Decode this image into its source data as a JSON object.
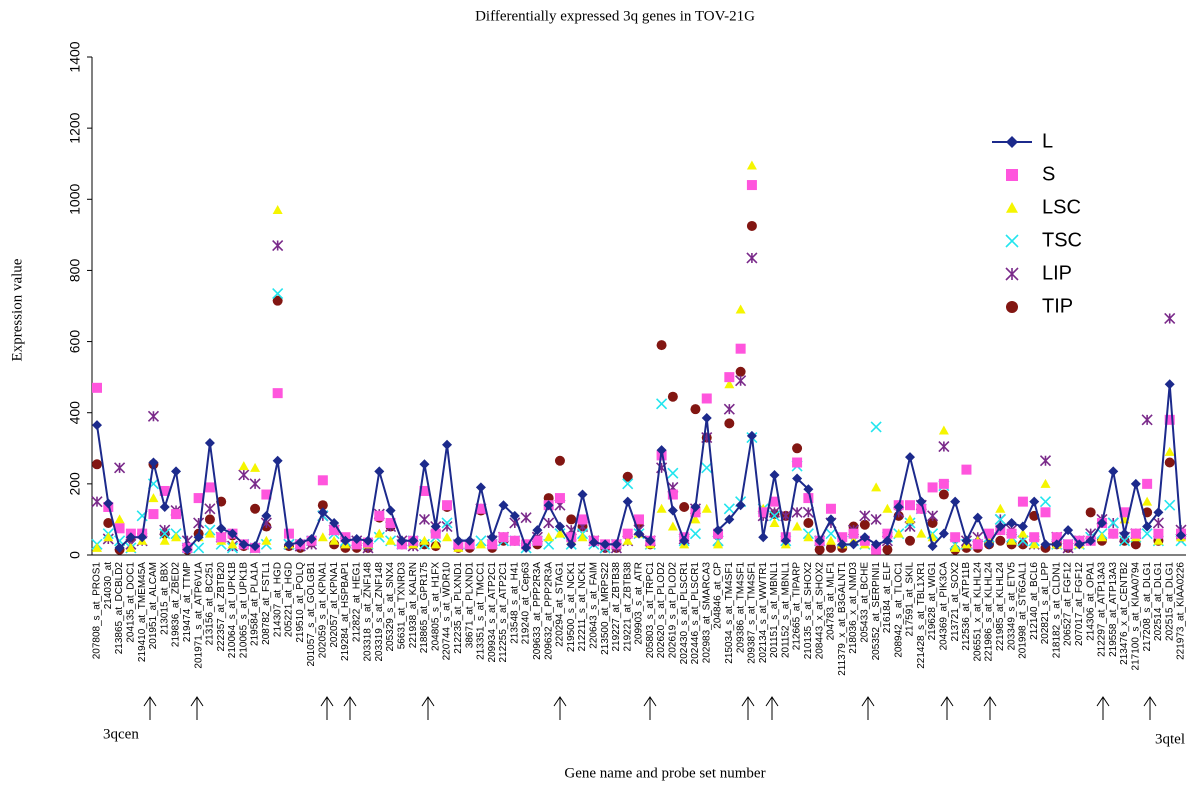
{
  "chart_data": {
    "type": "line",
    "title": "Differentially expressed 3q genes in TOV-21G",
    "x_label": "Gene name and probe set number",
    "y_label": "Expression value",
    "annotations": [
      "3qcen",
      "3qtel"
    ],
    "ylim": [
      0,
      1400
    ],
    "yticks": [
      0,
      200,
      400,
      600,
      800,
      1000,
      1200,
      1400
    ],
    "legend": "upper right",
    "categories": [
      "207808_s_at_PROS1",
      "214030_at",
      "213865_at_DCBLD2",
      "204135_at_DOC1",
      "219410_at_TMEM45A",
      "201951_at_ALCAM",
      "213015_at_BBX",
      "219836_at_ZBED2",
      "219474_at_TTMP",
      "201971_s_at_ATP6V1A",
      "213156_at_BC251",
      "222357_at_ZBTB20",
      "210064_s_at_UPK1B",
      "210065_s_at_UPK1B",
      "219584_at_PLA1A",
      "208782_at_FSTL1",
      "214307_at_HGD",
      "205221_at_HGD",
      "219510_at_POLQ",
      "201057_s_at_GOLGB1",
      "202059_s_at_KPNA1",
      "202057_at_KPNA1",
      "219284_at_HSPBAP1",
      "212822_at_HEG1",
      "203318_s_at_ZNF148",
      "203319_s_at_ZNF148",
      "205329_s_at_SNX4",
      "56631_at_TXNRD3",
      "221938_at_KALRN",
      "218865_at_GPR175",
      "204805_s_at_H1FX",
      "220744_s_at_WDR10",
      "212235_at_PLXND1",
      "38671_at_PLXND1",
      "213351_s_at_TMCC1",
      "209934_s_at_ATP2C1",
      "212255_s_at_ATP2C1",
      "213548_s_at_H41",
      "219240_at_Cep63",
      "209633_at_PPP2R3A",
      "209632_at_PPP2R3A",
      "220294_at_STAG1",
      "219500_s_at_NCK1",
      "212211_s_at_NCK1",
      "220643_s_at_FAIM",
      "213500_at_MRPS22",
      "219227_at_ZBTB38",
      "219221_at_ZBTB38",
      "209903_s_at_ATR",
      "205803_s_at_TRPC1",
      "202620_s_at_PLOD2",
      "202619_s_at_PLOD2",
      "202430_s_at_PLSCR1",
      "202446_s_at_PLSCR1",
      "202983_at_SMARCA3",
      "204846_at_CP",
      "215034_s_at_TM4SF1",
      "209386_at_TM4SF1",
      "209387_s_at_TM4SF1",
      "202134_s_at_WWTR1",
      "201151_s_at_MBNL1",
      "201152_s_at_MBNL1",
      "212665_at_TIPARP",
      "210135_s_at_SHOX2",
      "208443_x_at_SHOX2",
      "204783_at_MLF1",
      "211379_x_at_B3GALNT1",
      "218036_x_at_NMD3",
      "205433_at_BCHE",
      "205352_at_SERPINI1",
      "216184_at_ELF",
      "208942_s_at_TLOC1",
      "217591_at_SKIL",
      "221428_s_at_TBL1XR1",
      "219628_at_WIG1",
      "204369_at_PIK3CA",
      "213721_at_SOX2",
      "212536_at_ATP11B",
      "206551_x_at_KLHL24",
      "221986_s_at_KLHL24",
      "221985_at_KLHL24",
      "203349_s_at_ETV5",
      "201998_at_ST6GAL1",
      "212140_at_BCL6",
      "202821_s_at_LPP",
      "218182_s_at_CLDN1",
      "206527_at_FGF12",
      "207017_at_FGF12",
      "214306_at_OPA1",
      "212297_at_ATP13A3",
      "219558_at_ATP13A3",
      "213476_x_at_CENTB2",
      "217100_s_at_KIAA0794",
      "217208_s_at_DLG1",
      "202514_at_DLG1",
      "202515_at_DLG1",
      "221973_at_KIAA0226"
    ],
    "series": [
      {
        "name": "L",
        "color": "#1c2a8c",
        "marker": "diamond",
        "line": true,
        "values": [
          365,
          145,
          20,
          50,
          50,
          260,
          135,
          235,
          15,
          50,
          315,
          75,
          60,
          30,
          25,
          110,
          265,
          30,
          35,
          45,
          120,
          90,
          40,
          45,
          40,
          235,
          125,
          40,
          40,
          255,
          80,
          310,
          40,
          40,
          190,
          50,
          140,
          110,
          20,
          70,
          140,
          80,
          30,
          170,
          35,
          30,
          30,
          150,
          60,
          40,
          295,
          125,
          40,
          135,
          385,
          70,
          100,
          140,
          335,
          50,
          225,
          40,
          215,
          185,
          40,
          100,
          30,
          30,
          50,
          30,
          40,
          135,
          275,
          150,
          25,
          60,
          150,
          40,
          105,
          30,
          80,
          90,
          80,
          150,
          30,
          30,
          70,
          30,
          40,
          90,
          235,
          60,
          200,
          80,
          120,
          480,
          55
        ]
      },
      {
        "name": "S",
        "color": "#ff55dd",
        "marker": "square",
        "line": false,
        "values": [
          470,
          135,
          75,
          60,
          60,
          115,
          180,
          115,
          20,
          160,
          190,
          50,
          60,
          30,
          20,
          170,
          455,
          60,
          30,
          40,
          210,
          70,
          50,
          30,
          35,
          110,
          90,
          30,
          40,
          180,
          60,
          140,
          30,
          30,
          130,
          30,
          50,
          40,
          30,
          40,
          140,
          160,
          50,
          100,
          40,
          30,
          30,
          60,
          100,
          40,
          280,
          170,
          50,
          120,
          440,
          60,
          500,
          580,
          1040,
          120,
          150,
          50,
          260,
          160,
          40,
          130,
          50,
          60,
          40,
          15,
          60,
          140,
          140,
          130,
          190,
          200,
          50,
          240,
          30,
          60,
          70,
          60,
          150,
          50,
          120,
          50,
          30,
          40,
          40,
          90,
          60,
          120,
          60,
          200,
          60,
          380,
          60
        ]
      },
      {
        "name": "LSC",
        "color": "#f5f500",
        "marker": "triangle",
        "line": false,
        "values": [
          20,
          50,
          100,
          20,
          40,
          160,
          40,
          50,
          20,
          50,
          60,
          40,
          30,
          250,
          245,
          40,
          970,
          30,
          30,
          40,
          50,
          40,
          30,
          30,
          30,
          60,
          40,
          30,
          30,
          40,
          30,
          50,
          20,
          40,
          30,
          30,
          50,
          40,
          30,
          40,
          50,
          60,
          40,
          50,
          40,
          30,
          30,
          40,
          60,
          30,
          130,
          80,
          30,
          100,
          130,
          30,
          480,
          690,
          1095,
          130,
          90,
          30,
          80,
          50,
          40,
          40,
          30,
          40,
          30,
          190,
          130,
          60,
          100,
          60,
          50,
          350,
          20,
          30,
          40,
          40,
          130,
          40,
          60,
          30,
          200,
          30,
          30,
          30,
          40,
          50,
          60,
          100,
          50,
          150,
          40,
          290,
          50
        ]
      },
      {
        "name": "TSC",
        "color": "#22e5ee",
        "marker": "x",
        "line": false,
        "values": [
          30,
          60,
          40,
          20,
          110,
          200,
          60,
          60,
          20,
          20,
          70,
          30,
          20,
          30,
          20,
          30,
          735,
          30,
          30,
          40,
          110,
          60,
          40,
          30,
          30,
          50,
          40,
          30,
          40,
          30,
          50,
          90,
          30,
          30,
          40,
          30,
          40,
          40,
          20,
          40,
          30,
          60,
          30,
          60,
          30,
          20,
          30,
          200,
          60,
          30,
          425,
          230,
          40,
          60,
          245,
          40,
          130,
          150,
          330,
          130,
          110,
          40,
          250,
          60,
          40,
          60,
          40,
          40,
          30,
          360,
          50,
          60,
          90,
          130,
          60,
          195,
          30,
          30,
          30,
          50,
          100,
          50,
          40,
          40,
          150,
          30,
          30,
          30,
          50,
          60,
          90,
          40,
          50,
          60,
          40,
          140,
          40
        ]
      },
      {
        "name": "LIP",
        "color": "#7a2a8a",
        "marker": "asterisk",
        "line": false,
        "values": [
          150,
          45,
          245,
          30,
          40,
          390,
          70,
          125,
          40,
          90,
          130,
          50,
          25,
          225,
          200,
          90,
          870,
          30,
          25,
          30,
          110,
          70,
          35,
          40,
          20,
          115,
          80,
          40,
          25,
          100,
          80,
          80,
          30,
          30,
          130,
          40,
          50,
          90,
          105,
          50,
          90,
          140,
          70,
          80,
          40,
          20,
          20,
          40,
          70,
          40,
          245,
          190,
          45,
          130,
          330,
          40,
          410,
          490,
          835,
          110,
          120,
          110,
          120,
          120,
          40,
          90,
          40,
          70,
          110,
          100,
          40,
          120,
          80,
          140,
          110,
          305,
          30,
          40,
          50,
          50,
          100,
          70,
          40,
          30,
          265,
          50,
          20,
          40,
          60,
          100,
          90,
          50,
          60,
          380,
          90,
          665,
          70
        ]
      },
      {
        "name": "TIP",
        "color": "#821612",
        "marker": "circle",
        "line": false,
        "values": [
          255,
          90,
          15,
          50,
          60,
          255,
          60,
          115,
          15,
          60,
          100,
          150,
          55,
          25,
          130,
          80,
          715,
          25,
          20,
          35,
          140,
          30,
          20,
          20,
          20,
          105,
          80,
          30,
          30,
          30,
          25,
          135,
          20,
          20,
          125,
          20,
          40,
          40,
          30,
          30,
          160,
          265,
          100,
          80,
          40,
          20,
          20,
          220,
          90,
          30,
          590,
          445,
          135,
          410,
          330,
          55,
          370,
          515,
          925,
          120,
          115,
          110,
          300,
          90,
          15,
          20,
          20,
          80,
          85,
          15,
          15,
          110,
          40,
          130,
          90,
          170,
          15,
          20,
          20,
          30,
          40,
          30,
          30,
          110,
          20,
          30,
          20,
          40,
          120,
          40,
          60,
          40,
          30,
          120,
          40,
          260,
          50
        ]
      }
    ]
  }
}
